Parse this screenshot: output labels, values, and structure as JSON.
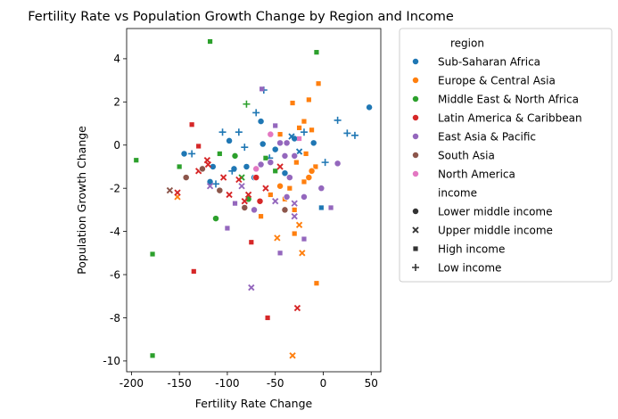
{
  "chart_data": {
    "type": "scatter",
    "title": "Fertility Rate vs Population Growth Change by Region and Income",
    "xlabel": "Fertility Rate Change",
    "ylabel": "Population Growth Change",
    "xlim": [
      -205,
      60
    ],
    "ylim": [
      -10.5,
      5.4
    ],
    "xticks": [
      -200,
      -150,
      -100,
      -50,
      0,
      50
    ],
    "yticks": [
      4,
      2,
      0,
      -2,
      -4,
      -6,
      -8,
      -10
    ],
    "legend_position": "outside-right",
    "legend": {
      "hue_title": "region",
      "style_title": "income",
      "regions": [
        {
          "name": "Sub-Saharan Africa",
          "color": "#1f77b4"
        },
        {
          "name": "Europe & Central Asia",
          "color": "#ff7f0e"
        },
        {
          "name": "Middle East & North Africa",
          "color": "#2ca02c"
        },
        {
          "name": "Latin America & Caribbean",
          "color": "#d62728"
        },
        {
          "name": "East Asia & Pacific",
          "color": "#9467bd"
        },
        {
          "name": "South Asia",
          "color": "#8c564b"
        },
        {
          "name": "North America",
          "color": "#e377c2"
        }
      ],
      "incomes": [
        {
          "name": "Lower middle income",
          "marker": "circle"
        },
        {
          "name": "Upper middle income",
          "marker": "x"
        },
        {
          "name": "High income",
          "marker": "square"
        },
        {
          "name": "Low income",
          "marker": "plus"
        }
      ]
    },
    "points": [
      {
        "x": 48,
        "y": 1.75,
        "r": 0,
        "m": "circle"
      },
      {
        "x": -65,
        "y": 1.1,
        "r": 0,
        "m": "circle"
      },
      {
        "x": -98,
        "y": 0.2,
        "r": 0,
        "m": "circle"
      },
      {
        "x": -63,
        "y": 0.05,
        "r": 0,
        "m": "circle"
      },
      {
        "x": -145,
        "y": -0.4,
        "r": 0,
        "m": "circle"
      },
      {
        "x": -115,
        "y": -1.0,
        "r": 0,
        "m": "circle"
      },
      {
        "x": -93,
        "y": -1.1,
        "r": 0,
        "m": "circle"
      },
      {
        "x": -80,
        "y": -1.0,
        "r": 0,
        "m": "circle"
      },
      {
        "x": -72,
        "y": -1.5,
        "r": 0,
        "m": "circle"
      },
      {
        "x": -50,
        "y": -0.2,
        "r": 0,
        "m": "circle"
      },
      {
        "x": -30,
        "y": 0.3,
        "r": 0,
        "m": "circle"
      },
      {
        "x": -10,
        "y": 0.1,
        "r": 0,
        "m": "circle"
      },
      {
        "x": -118,
        "y": -1.7,
        "r": 0,
        "m": "circle"
      },
      {
        "x": -40,
        "y": -1.3,
        "r": 0,
        "m": "circle"
      },
      {
        "x": -62,
        "y": 2.55,
        "r": 0,
        "m": "plus"
      },
      {
        "x": -70,
        "y": 1.5,
        "r": 0,
        "m": "plus"
      },
      {
        "x": 15,
        "y": 1.15,
        "r": 0,
        "m": "plus"
      },
      {
        "x": 25,
        "y": 0.55,
        "r": 0,
        "m": "plus"
      },
      {
        "x": 33,
        "y": 0.45,
        "r": 0,
        "m": "plus"
      },
      {
        "x": -88,
        "y": 0.6,
        "r": 0,
        "m": "plus"
      },
      {
        "x": -105,
        "y": 0.6,
        "r": 0,
        "m": "plus"
      },
      {
        "x": -82,
        "y": -0.1,
        "r": 0,
        "m": "plus"
      },
      {
        "x": -137,
        "y": -0.4,
        "r": 0,
        "m": "plus"
      },
      {
        "x": -56,
        "y": -0.6,
        "r": 0,
        "m": "plus"
      },
      {
        "x": 2,
        "y": -0.8,
        "r": 0,
        "m": "plus"
      },
      {
        "x": -95,
        "y": -1.2,
        "r": 0,
        "m": "plus"
      },
      {
        "x": -112,
        "y": -1.8,
        "r": 0,
        "m": "plus"
      },
      {
        "x": -20,
        "y": 0.6,
        "r": 0,
        "m": "plus"
      },
      {
        "x": -2,
        "y": -2.9,
        "r": 0,
        "m": "square"
      },
      {
        "x": -33,
        "y": 0.4,
        "r": 0,
        "m": "x"
      },
      {
        "x": -25,
        "y": -0.3,
        "r": 0,
        "m": "x"
      },
      {
        "x": -5,
        "y": 2.85,
        "r": 1,
        "m": "square"
      },
      {
        "x": -32,
        "y": 1.95,
        "r": 1,
        "m": "square"
      },
      {
        "x": -15,
        "y": 2.1,
        "r": 1,
        "m": "square"
      },
      {
        "x": -20,
        "y": 1.1,
        "r": 1,
        "m": "square"
      },
      {
        "x": -25,
        "y": 0.8,
        "r": 1,
        "m": "square"
      },
      {
        "x": -12,
        "y": 0.7,
        "r": 1,
        "m": "square"
      },
      {
        "x": -45,
        "y": 0.5,
        "r": 1,
        "m": "square"
      },
      {
        "x": -18,
        "y": -0.4,
        "r": 1,
        "m": "square"
      },
      {
        "x": -28,
        "y": -0.8,
        "r": 1,
        "m": "square"
      },
      {
        "x": -8,
        "y": -1.0,
        "r": 1,
        "m": "square"
      },
      {
        "x": -12,
        "y": -1.2,
        "r": 1,
        "m": "circle"
      },
      {
        "x": -15,
        "y": -1.5,
        "r": 1,
        "m": "circle"
      },
      {
        "x": -20,
        "y": -1.7,
        "r": 1,
        "m": "square"
      },
      {
        "x": -35,
        "y": -2.0,
        "r": 1,
        "m": "square"
      },
      {
        "x": -45,
        "y": -1.9,
        "r": 1,
        "m": "circle"
      },
      {
        "x": -55,
        "y": -2.3,
        "r": 1,
        "m": "square"
      },
      {
        "x": -65,
        "y": -3.3,
        "r": 1,
        "m": "square"
      },
      {
        "x": -30,
        "y": -3.0,
        "r": 1,
        "m": "square"
      },
      {
        "x": -25,
        "y": -3.7,
        "r": 1,
        "m": "x"
      },
      {
        "x": -48,
        "y": -4.3,
        "r": 1,
        "m": "x"
      },
      {
        "x": -30,
        "y": -4.1,
        "r": 1,
        "m": "square"
      },
      {
        "x": -22,
        "y": -5.0,
        "r": 1,
        "m": "x"
      },
      {
        "x": -7,
        "y": -6.4,
        "r": 1,
        "m": "square"
      },
      {
        "x": -32,
        "y": -9.75,
        "r": 1,
        "m": "x"
      },
      {
        "x": -152,
        "y": -2.4,
        "r": 1,
        "m": "x"
      },
      {
        "x": -40,
        "y": -2.5,
        "r": 1,
        "m": "square"
      },
      {
        "x": -118,
        "y": 4.8,
        "r": 2,
        "m": "square"
      },
      {
        "x": -7,
        "y": 4.3,
        "r": 2,
        "m": "square"
      },
      {
        "x": -80,
        "y": 1.9,
        "r": 2,
        "m": "plus"
      },
      {
        "x": -195,
        "y": -0.7,
        "r": 2,
        "m": "square"
      },
      {
        "x": -150,
        "y": -1.0,
        "r": 2,
        "m": "square"
      },
      {
        "x": -112,
        "y": -3.4,
        "r": 2,
        "m": "circle"
      },
      {
        "x": -78,
        "y": -2.5,
        "r": 2,
        "m": "circle"
      },
      {
        "x": -92,
        "y": -0.5,
        "r": 2,
        "m": "circle"
      },
      {
        "x": -108,
        "y": -0.4,
        "r": 2,
        "m": "square"
      },
      {
        "x": -178,
        "y": -5.05,
        "r": 2,
        "m": "square"
      },
      {
        "x": -178,
        "y": -9.75,
        "r": 2,
        "m": "square"
      },
      {
        "x": -50,
        "y": -1.2,
        "r": 2,
        "m": "square"
      },
      {
        "x": -85,
        "y": -1.5,
        "r": 2,
        "m": "x"
      },
      {
        "x": -60,
        "y": -0.6,
        "r": 2,
        "m": "square"
      },
      {
        "x": -137,
        "y": 0.95,
        "r": 3,
        "m": "square"
      },
      {
        "x": -121,
        "y": -0.7,
        "r": 3,
        "m": "x"
      },
      {
        "x": -130,
        "y": -1.2,
        "r": 3,
        "m": "x"
      },
      {
        "x": -104,
        "y": -1.5,
        "r": 3,
        "m": "x"
      },
      {
        "x": -88,
        "y": -1.6,
        "r": 3,
        "m": "x"
      },
      {
        "x": -70,
        "y": -1.5,
        "r": 3,
        "m": "circle"
      },
      {
        "x": -152,
        "y": -2.2,
        "r": 3,
        "m": "x"
      },
      {
        "x": -98,
        "y": -2.3,
        "r": 3,
        "m": "x"
      },
      {
        "x": -78,
        "y": -2.3,
        "r": 3,
        "m": "x"
      },
      {
        "x": -82,
        "y": -2.6,
        "r": 3,
        "m": "x"
      },
      {
        "x": -60,
        "y": -2.0,
        "r": 3,
        "m": "x"
      },
      {
        "x": -66,
        "y": -2.6,
        "r": 3,
        "m": "circle"
      },
      {
        "x": -75,
        "y": -4.5,
        "r": 3,
        "m": "square"
      },
      {
        "x": -135,
        "y": -5.85,
        "r": 3,
        "m": "square"
      },
      {
        "x": -58,
        "y": -8.0,
        "r": 3,
        "m": "square"
      },
      {
        "x": -27,
        "y": -7.55,
        "r": 3,
        "m": "x"
      },
      {
        "x": -120,
        "y": -0.9,
        "r": 3,
        "m": "x"
      },
      {
        "x": -130,
        "y": -0.05,
        "r": 3,
        "m": "square"
      },
      {
        "x": -45,
        "y": -1.0,
        "r": 3,
        "m": "x"
      },
      {
        "x": -64,
        "y": 2.6,
        "r": 4,
        "m": "square"
      },
      {
        "x": -50,
        "y": 0.9,
        "r": 4,
        "m": "square"
      },
      {
        "x": -45,
        "y": 0.1,
        "r": 4,
        "m": "circle"
      },
      {
        "x": -38,
        "y": 0.1,
        "r": 4,
        "m": "circle"
      },
      {
        "x": -30,
        "y": -0.5,
        "r": 4,
        "m": "circle"
      },
      {
        "x": -40,
        "y": -0.5,
        "r": 4,
        "m": "circle"
      },
      {
        "x": 15,
        "y": -0.85,
        "r": 4,
        "m": "circle"
      },
      {
        "x": -2,
        "y": -2.0,
        "r": 4,
        "m": "circle"
      },
      {
        "x": -35,
        "y": -1.5,
        "r": 4,
        "m": "circle"
      },
      {
        "x": -20,
        "y": -2.4,
        "r": 4,
        "m": "circle"
      },
      {
        "x": -38,
        "y": -2.4,
        "r": 4,
        "m": "circle"
      },
      {
        "x": -55,
        "y": -0.8,
        "r": 4,
        "m": "circle"
      },
      {
        "x": -65,
        "y": -0.9,
        "r": 4,
        "m": "circle"
      },
      {
        "x": -118,
        "y": -1.9,
        "r": 4,
        "m": "x"
      },
      {
        "x": -100,
        "y": -3.85,
        "r": 4,
        "m": "square"
      },
      {
        "x": 8,
        "y": -2.9,
        "r": 4,
        "m": "square"
      },
      {
        "x": -75,
        "y": -6.6,
        "r": 4,
        "m": "x"
      },
      {
        "x": -45,
        "y": -5.0,
        "r": 4,
        "m": "square"
      },
      {
        "x": -20,
        "y": -4.35,
        "r": 4,
        "m": "square"
      },
      {
        "x": -30,
        "y": -3.3,
        "r": 4,
        "m": "x"
      },
      {
        "x": -30,
        "y": -2.7,
        "r": 4,
        "m": "x"
      },
      {
        "x": -50,
        "y": -2.6,
        "r": 4,
        "m": "x"
      },
      {
        "x": -85,
        "y": -1.9,
        "r": 4,
        "m": "x"
      },
      {
        "x": -92,
        "y": -2.7,
        "r": 4,
        "m": "square"
      },
      {
        "x": -72,
        "y": -3.0,
        "r": 4,
        "m": "circle"
      },
      {
        "x": -126,
        "y": -1.1,
        "r": 5,
        "m": "circle"
      },
      {
        "x": -143,
        "y": -1.5,
        "r": 5,
        "m": "circle"
      },
      {
        "x": -108,
        "y": -2.1,
        "r": 5,
        "m": "circle"
      },
      {
        "x": -82,
        "y": -2.9,
        "r": 5,
        "m": "circle"
      },
      {
        "x": -40,
        "y": -3.0,
        "r": 5,
        "m": "circle"
      },
      {
        "x": -160,
        "y": -2.1,
        "r": 5,
        "m": "x"
      },
      {
        "x": -70,
        "y": -1.1,
        "r": 6,
        "m": "circle"
      },
      {
        "x": -25,
        "y": 0.3,
        "r": 6,
        "m": "square"
      },
      {
        "x": -55,
        "y": 0.5,
        "r": 6,
        "m": "circle"
      }
    ]
  }
}
